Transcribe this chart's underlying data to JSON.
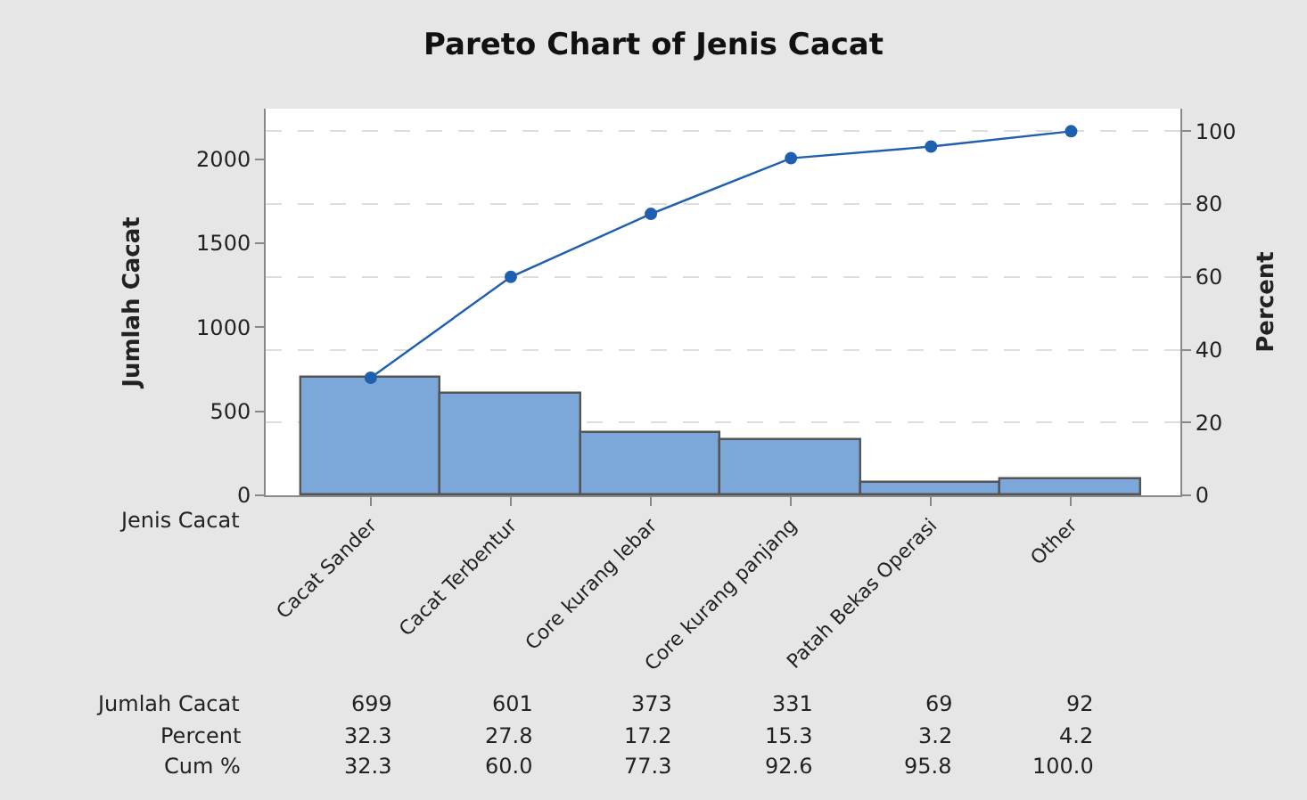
{
  "chart_data": {
    "type": "bar",
    "title": "Pareto Chart of Jenis Cacat",
    "xlabel": "Jenis Cacat",
    "ylabel": "Jumlah Cacat",
    "y2label": "Percent",
    "categories": [
      "Cacat Sander",
      "Cacat Terbentur",
      "Core kurang lebar",
      "Core kurang panjang",
      "Patah Bekas Operasi",
      "Other"
    ],
    "series": [
      {
        "color": "#7ba7d9",
        "values": [
          699,
          601,
          373,
          331,
          69,
          92
        ],
        "value_labels": [
          "699",
          "601",
          "373",
          "331",
          "69",
          "92"
        ]
      },
      {
        "type": "line",
        "axis": "y2",
        "color": "#1f5faf",
        "values": [
          32.3,
          60.0,
          77.3,
          92.6,
          95.8,
          100.0
        ],
        "value_labels": [
          "32.3",
          "60.0",
          "77.3",
          "92.6",
          "95.8",
          "100.0"
        ]
      }
    ],
    "annotations": [
      "Jumlah Cacat",
      "Percent",
      "Cum %",
      "32.3",
      "27.8",
      "17.2",
      "15.3",
      "3.2",
      "4.2"
    ],
    "ylim": [
      0,
      2300
    ],
    "yticks": [
      0,
      500,
      1000,
      1500,
      2000
    ],
    "y2lim": [
      0,
      106.2
    ],
    "y2ticks": [
      0,
      20,
      40,
      60,
      80,
      100
    ],
    "grid": true,
    "marker": "circle",
    "line_style": "solid"
  }
}
